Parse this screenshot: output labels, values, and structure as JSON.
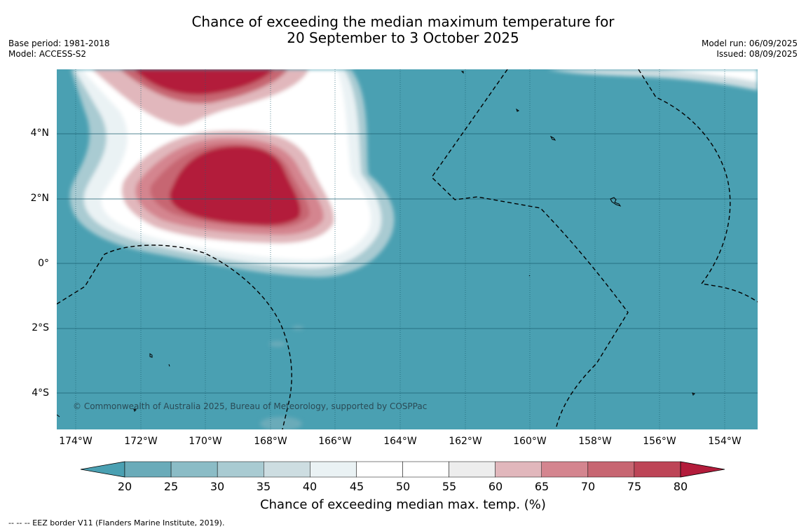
{
  "title_line1": "Chance of exceeding the median maximum temperature for",
  "title_line2": "20 September to 3 October 2025",
  "meta_left": [
    "Base period: 1981-2018",
    "Model: ACCESS-S2"
  ],
  "meta_right": [
    "Model run: 06/09/2025",
    "Issued: 08/09/2025"
  ],
  "y_labels": [
    "4°N",
    "2°N",
    "0°",
    "2°S",
    "4°S"
  ],
  "x_labels": [
    "174°W",
    "172°W",
    "170°W",
    "168°W",
    "166°W",
    "164°W",
    "162°W",
    "160°W",
    "158°W",
    "156°W",
    "154°W"
  ],
  "copyright": "© Commonwealth of Australia 2025, Bureau of Meteorology, supported by COSPPac",
  "colorbar": {
    "ticks": [
      "20",
      "25",
      "30",
      "35",
      "40",
      "45",
      "50",
      "55",
      "60",
      "65",
      "70",
      "75",
      "80"
    ],
    "colors": [
      "#4aa0b2",
      "#6aabb9",
      "#8bbcc6",
      "#a9cbd2",
      "#cddde1",
      "#eaf2f4",
      "#ffffff",
      "#ffffff",
      "#ededed",
      "#e1b7bc",
      "#d4858f",
      "#c76672",
      "#bd4557",
      "#b31c3b"
    ],
    "label": "Chance of exceeding median max. temp. (%)"
  },
  "footnote": "--  --  -- EEZ border V11 (Flanders Marine Institute, 2019)."
}
